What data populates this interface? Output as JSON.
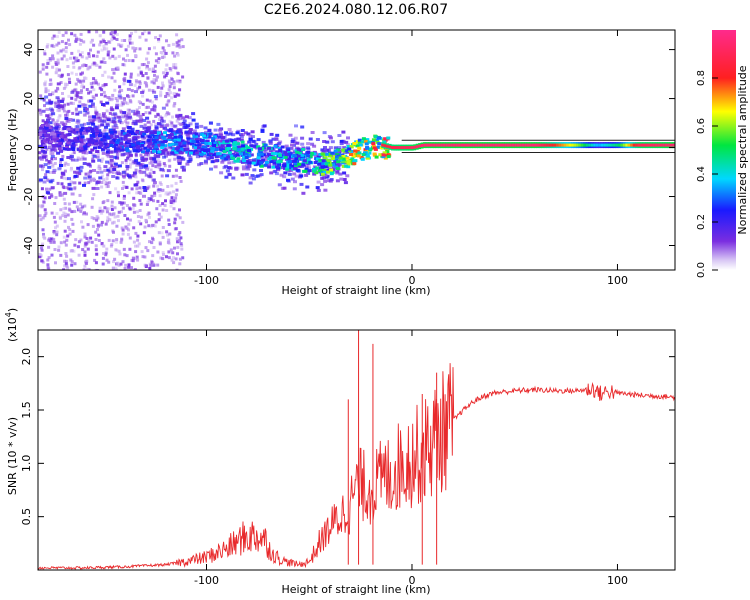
{
  "page_title": "C2E6.2024.080.12.06.R07",
  "colors": {
    "snr_line": "#e8292b",
    "axis": "#000000",
    "zero_band": "#222222"
  },
  "chart_data": [
    {
      "type": "heatmap",
      "title": "C2E6.2024.080.12.06.R07",
      "xlabel": "Height of straight line (km)",
      "ylabel": "Frequency (Hz)",
      "xlim": [
        -182,
        128
      ],
      "ylim": [
        -50,
        48
      ],
      "xticks": [
        -100,
        0,
        100
      ],
      "yticks": [
        -40,
        -20,
        0,
        20,
        40
      ],
      "colorbar": {
        "label": "Normalized spectral amplitude",
        "range": [
          0,
          1
        ],
        "ticks": [
          0.0,
          0.2,
          0.4,
          0.6,
          0.8
        ],
        "colormap": "hsv-like (purple-blue-cyan-green-yellow-red-magenta)"
      },
      "ridge": {
        "x": [
          -182,
          -160,
          -140,
          -120,
          -100,
          -90,
          -80,
          -70,
          -60,
          -50,
          -45,
          -40,
          -35,
          -30,
          -25,
          -20,
          -15,
          -10,
          -5,
          0,
          5,
          10,
          20,
          40,
          60,
          80,
          90,
          100,
          110,
          128
        ],
        "frequency": [
          5,
          4,
          3,
          3,
          2,
          0,
          -2,
          -3,
          -4,
          -5,
          -6,
          -6,
          -4,
          -2,
          0,
          1,
          1,
          0,
          0,
          0,
          1,
          1,
          1,
          1,
          1,
          1,
          1,
          1,
          1,
          1
        ],
        "amplitude": [
          0.2,
          0.25,
          0.3,
          0.35,
          0.4,
          0.42,
          0.45,
          0.45,
          0.45,
          0.5,
          0.55,
          0.6,
          0.65,
          0.7,
          0.75,
          0.8,
          0.85,
          0.88,
          0.9,
          0.92,
          0.95,
          0.95,
          0.95,
          0.95,
          0.95,
          0.6,
          0.35,
          0.5,
          0.9,
          0.95
        ]
      },
      "band_lines": [
        -2,
        3
      ]
    },
    {
      "type": "line",
      "xlabel": "Height of straight line (km)",
      "ylabel": "SNR (10 * v/v)",
      "y_multiplier_label": "(x10",
      "y_multiplier_exp": "4",
      "xlim": [
        -182,
        128
      ],
      "ylim": [
        0,
        2.25
      ],
      "xticks": [
        -100,
        0,
        100
      ],
      "yticks": [
        0.5,
        1.0,
        1.5,
        2.0
      ],
      "ytick_labels": [
        "0.5",
        "1.0",
        "1.5",
        "2.0"
      ],
      "series": [
        {
          "name": "SNR",
          "x": [
            -182,
            -160,
            -140,
            -120,
            -110,
            -100,
            -90,
            -82,
            -78,
            -72,
            -68,
            -62,
            -55,
            -50,
            -45,
            -40,
            -35,
            -30,
            -28,
            -25,
            -20,
            -15,
            -10,
            -5,
            0,
            5,
            10,
            15,
            20,
            25,
            30,
            35,
            40,
            50,
            60,
            70,
            80,
            88,
            92,
            96,
            100,
            110,
            120,
            128
          ],
          "values": [
            0.02,
            0.02,
            0.03,
            0.05,
            0.08,
            0.12,
            0.2,
            0.3,
            0.32,
            0.3,
            0.15,
            0.08,
            0.05,
            0.08,
            0.25,
            0.4,
            0.5,
            0.6,
            0.75,
            0.8,
            0.75,
            0.85,
            0.9,
            1.0,
            1.05,
            1.1,
            1.2,
            1.3,
            1.4,
            1.5,
            1.58,
            1.63,
            1.66,
            1.68,
            1.69,
            1.68,
            1.68,
            1.7,
            1.65,
            1.68,
            1.66,
            1.64,
            1.63,
            1.62
          ]
        }
      ]
    }
  ]
}
